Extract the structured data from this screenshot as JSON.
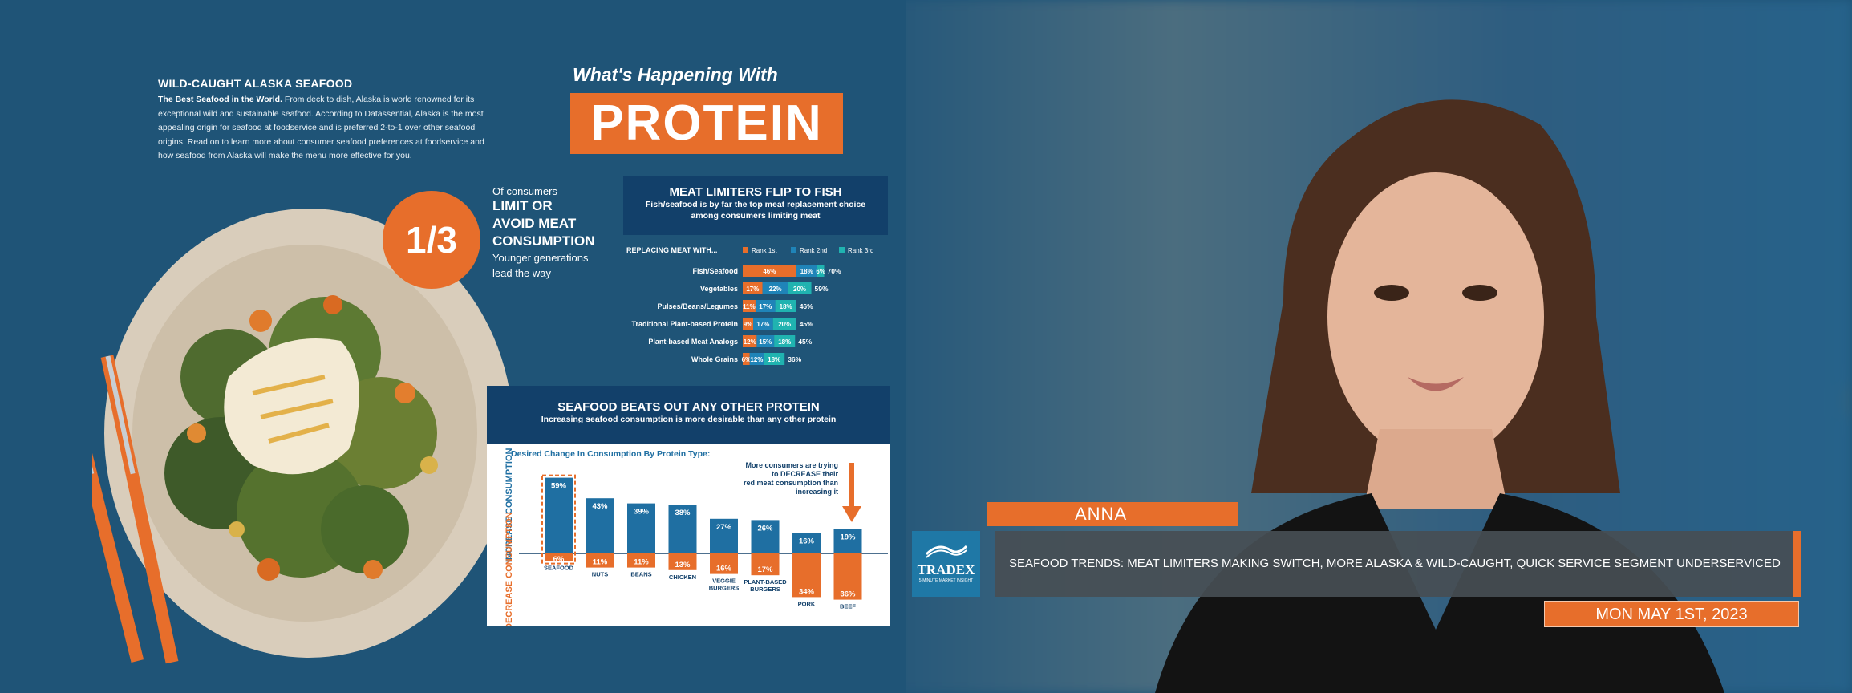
{
  "infographic": {
    "intro_heading": "WILD-CAUGHT ALASKA SEAFOOD",
    "intro_lead": "The Best Seafood in the World.",
    "intro_body": "From deck to dish, Alaska is world renowned for its exceptional wild and sustainable seafood. According to Datassential, Alaska is the most appealing origin for seafood at foodservice and is preferred 2-to-1 over other seafood origins. Read on to learn more about consumer seafood preferences at foodservice and how seafood from Alaska will make the menu more effective for you.",
    "hook": "What's Happening With",
    "banner": "PROTEIN",
    "stat_value": "1/3",
    "stat_pre": "Of consumers",
    "stat_line1": "LIMIT OR",
    "stat_line2": "AVOID MEAT",
    "stat_line3": "CONSUMPTION",
    "stat_sub1": "Younger generations",
    "stat_sub2": "lead the way",
    "panel1_title": "MEAT LIMITERS FLIP TO FISH",
    "panel1_sub1": "Fish/seafood is by far the top meat replacement choice",
    "panel1_sub2": "among consumers limiting meat",
    "panel2_title": "SEAFOOD BEATS OUT ANY OTHER PROTEIN",
    "panel2_sub": "Increasing seafood consumption is more desirable than any other protein"
  },
  "chart_data": [
    {
      "type": "bar",
      "stacked": true,
      "orientation": "horizontal",
      "title": "MEAT LIMITERS FLIP TO FISH",
      "axis_heading": "REPLACING MEAT WITH...",
      "categories": [
        "Fish/Seafood",
        "Vegetables",
        "Pulses/Beans/Legumes",
        "Traditional Plant-based Protein",
        "Plant-based Meat Analogs",
        "Whole Grains"
      ],
      "series": [
        {
          "name": "Rank 1st",
          "color": "#e76e2b",
          "values": [
            46,
            17,
            11,
            9,
            12,
            6
          ],
          "labels": [
            "46%",
            "17%",
            "11%",
            "9%",
            "12%",
            "6%"
          ]
        },
        {
          "name": "Rank 2nd",
          "color": "#1f84b8",
          "values": [
            18,
            22,
            17,
            17,
            15,
            12
          ],
          "labels": [
            "18%",
            "22%",
            "17%",
            "17%",
            "15%",
            "12%"
          ]
        },
        {
          "name": "Rank 3rd",
          "color": "#20b3b0",
          "values": [
            6,
            20,
            18,
            20,
            18,
            18
          ],
          "labels": [
            "6%",
            "20%",
            "18%",
            "20%",
            "18%",
            "18%"
          ]
        }
      ],
      "totals": [
        "70%",
        "59%",
        "46%",
        "45%",
        "45%",
        "36%"
      ]
    },
    {
      "type": "bar",
      "diverging": true,
      "title": "Desired Change In Consumption By Protein Type:",
      "ylabel_top": "INCREASE CONSUMPTION",
      "ylabel_bottom": "DECREASE CONSUMPTION",
      "categories": [
        "SEAFOOD",
        "NUTS",
        "BEANS",
        "CHICKEN",
        "VEGGIE BURGERS",
        "PLANT-BASED BURGERS",
        "PORK",
        "BEEF"
      ],
      "series": [
        {
          "name": "Increase",
          "color": "#1f6fa2",
          "values": [
            59,
            43,
            39,
            38,
            27,
            26,
            16,
            19
          ],
          "labels": [
            "59%",
            "43%",
            "39%",
            "38%",
            "27%",
            "26%",
            "16%",
            "19%"
          ]
        },
        {
          "name": "Decrease",
          "color": "#e76e2b",
          "values": [
            6,
            11,
            11,
            13,
            16,
            17,
            34,
            36
          ],
          "labels": [
            "6%",
            "11%",
            "11%",
            "13%",
            "16%",
            "17%",
            "34%",
            "36%"
          ]
        }
      ],
      "annotation_1": "More consumers are trying",
      "annotation_2": "to DECREASE their",
      "annotation_3": "red meat consumption than",
      "annotation_4": "increasing it"
    }
  ],
  "lower_third": {
    "name": "ANNA",
    "logo_text": "TRADEX",
    "logo_sub": "5-MINUTE MARKET INSIGHT",
    "headline": "SEAFOOD TRENDS: MEAT LIMITERS MAKING SWITCH, MORE ALASKA & WILD-CAUGHT, QUICK SERVICE SEGMENT UNDERSERVICED",
    "date": "MON MAY 1ST, 2023"
  },
  "colors": {
    "orange": "#e76e2b",
    "navy": "#12406a",
    "teal": "#20b3b0",
    "blue": "#1f84b8"
  }
}
